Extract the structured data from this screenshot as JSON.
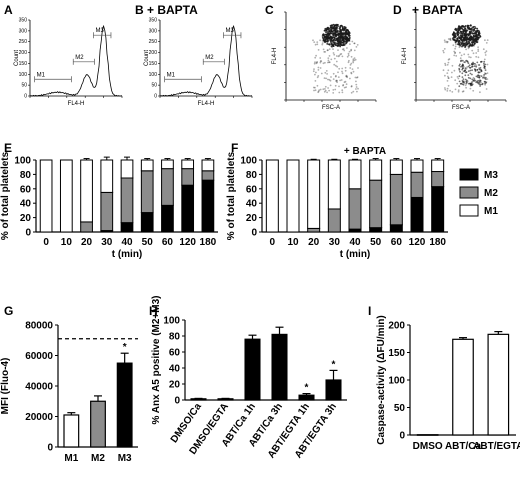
{
  "panel_letters": [
    "A",
    "B",
    "C",
    "D",
    "E",
    "F",
    "G",
    "H",
    "I"
  ],
  "colors": {
    "M1": "#ffffff",
    "M2": "#8c8c8c",
    "M3": "#000000",
    "density": "#1a1a1a"
  },
  "chart_data": [
    {
      "id": "A",
      "type": "histogram",
      "title": "",
      "xlabel": "FL4-H",
      "ylabel": "Count",
      "x_scale": "log",
      "xlim": [
        1,
        100000
      ],
      "y_ticks": [
        "0",
        "50",
        "100",
        "150",
        "200",
        "250",
        "300",
        "350"
      ],
      "gates": [
        "M1",
        "M2",
        "M3"
      ]
    },
    {
      "id": "B",
      "type": "histogram",
      "title": "+ BAPTA",
      "xlabel": "FL4-H",
      "ylabel": "Count",
      "x_scale": "log",
      "xlim": [
        1,
        100000
      ],
      "y_ticks": [
        "0",
        "50",
        "100",
        "150",
        "200",
        "250",
        "300",
        "350"
      ],
      "gates": [
        "M1",
        "M2",
        "M3"
      ]
    },
    {
      "id": "C",
      "type": "scatter",
      "title": "",
      "xlabel": "FSC-A",
      "ylabel": "FL4-H",
      "x_scale": "log",
      "y_scale": "log"
    },
    {
      "id": "D",
      "type": "scatter",
      "title": "+ BAPTA",
      "xlabel": "FSC-A",
      "ylabel": "FL4-H",
      "x_scale": "log",
      "y_scale": "log"
    },
    {
      "id": "E",
      "type": "bar",
      "stacked": true,
      "title": "",
      "xlabel": "t (min)",
      "ylabel": "% of total platelets",
      "ylim": [
        0,
        100
      ],
      "y_ticks": [
        "0",
        "20",
        "40",
        "60",
        "80",
        "100"
      ],
      "categories": [
        "0",
        "10",
        "20",
        "30",
        "40",
        "50",
        "60",
        "120",
        "180"
      ],
      "series": [
        {
          "name": "M3",
          "values": [
            0,
            0,
            0,
            2,
            13,
            27,
            37,
            65,
            72
          ],
          "errors": [
            0,
            0,
            0,
            1,
            1,
            5,
            7,
            7,
            4
          ]
        },
        {
          "name": "M2",
          "values": [
            0,
            0,
            14,
            53,
            62,
            58,
            51,
            23,
            13
          ],
          "errors": [
            0,
            0,
            3,
            15,
            2,
            2,
            3,
            2,
            2
          ]
        },
        {
          "name": "M1",
          "values": [
            100,
            100,
            86,
            45,
            25,
            15,
            12,
            12,
            15
          ],
          "errors": [
            0,
            0,
            2,
            4,
            4,
            2,
            2,
            2,
            2
          ]
        }
      ],
      "legend": "right"
    },
    {
      "id": "F",
      "type": "bar",
      "stacked": true,
      "title": "+ BAPTA",
      "xlabel": "t (min)",
      "ylabel": "% of total platelets",
      "ylim": [
        0,
        100
      ],
      "y_ticks": [
        "0",
        "20",
        "40",
        "60",
        "80",
        "100"
      ],
      "categories": [
        "0",
        "10",
        "20",
        "30",
        "40",
        "50",
        "60",
        "120",
        "180"
      ],
      "series": [
        {
          "name": "M3",
          "values": [
            0,
            0,
            0,
            0,
            4,
            6,
            10,
            48,
            63
          ],
          "errors": [
            0,
            0,
            0,
            0,
            1,
            1,
            2,
            4,
            2
          ]
        },
        {
          "name": "M2",
          "values": [
            0,
            0,
            5,
            32,
            56,
            66,
            70,
            35,
            21
          ],
          "errors": [
            0,
            0,
            1,
            1,
            2,
            2,
            2,
            3,
            2
          ]
        },
        {
          "name": "M1",
          "values": [
            100,
            100,
            95,
            68,
            40,
            28,
            20,
            17,
            16
          ],
          "errors": [
            0,
            0,
            1,
            1,
            1,
            2,
            2,
            2,
            2
          ]
        }
      ],
      "legend": "right"
    },
    {
      "id": "G",
      "type": "bar",
      "title": "",
      "xlabel": "",
      "ylabel": "MFI (Fluo-4)",
      "ylim": [
        0,
        80000
      ],
      "y_ticks": [
        "0",
        "20000",
        "40000",
        "60000",
        "80000"
      ],
      "categories": [
        "M1",
        "M2",
        "M3"
      ],
      "values": [
        21000,
        30000,
        55000
      ],
      "errors": [
        1500,
        3500,
        6500
      ],
      "bar_colors": [
        "#ffffff",
        "#8c8c8c",
        "#000000"
      ],
      "reference_line": 71000,
      "significance": [
        "",
        "",
        "*"
      ]
    },
    {
      "id": "H",
      "type": "bar",
      "title": "",
      "xlabel": "",
      "ylabel": "% Anx A5 positive (M2+M3)",
      "ylim": [
        0,
        100
      ],
      "y_ticks": [
        "0",
        "20",
        "40",
        "60",
        "80",
        "100"
      ],
      "categories": [
        "DMSO/Ca",
        "DMSO/EGTA",
        "ABT/Ca 1h",
        "ABT/Ca 3h",
        "ABT/EGTA 1h",
        "ABT/EGTA 3h"
      ],
      "values": [
        1.5,
        1.5,
        76,
        82,
        6,
        25
      ],
      "errors": [
        0.5,
        0.5,
        5,
        9,
        2,
        12
      ],
      "bar_colors": [
        "#000000",
        "#000000",
        "#000000",
        "#000000",
        "#000000",
        "#000000"
      ],
      "significance": [
        "",
        "",
        "",
        "",
        "*",
        "*"
      ]
    },
    {
      "id": "I",
      "type": "bar",
      "title": "",
      "xlabel": "",
      "ylabel": "Caspase-activity (ΔFU/min)",
      "ylim": [
        0,
        200
      ],
      "y_ticks": [
        "0",
        "50",
        "100",
        "150",
        "200"
      ],
      "categories": [
        "DMSO",
        "ABT/Ca",
        "ABT/EGTA"
      ],
      "values": [
        0.5,
        174,
        183
      ],
      "errors": [
        0,
        3,
        5
      ],
      "bar_colors": [
        "#ffffff",
        "#ffffff",
        "#ffffff"
      ]
    }
  ]
}
